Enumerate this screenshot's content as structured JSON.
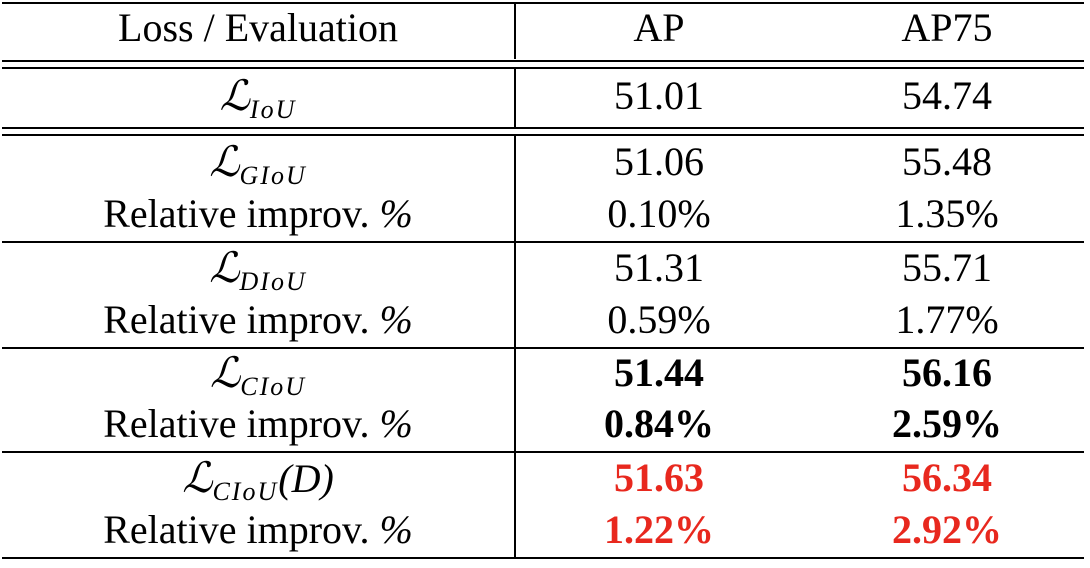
{
  "table": {
    "header": {
      "col1": "Loss / Evaluation",
      "col2": "AP",
      "col3": "AP75"
    },
    "baseline": {
      "loss_symbol": "ℒ",
      "loss_sub": "IoU",
      "ap": "51.01",
      "ap75": "54.74"
    },
    "groups": [
      {
        "loss_symbol": "ℒ",
        "loss_sub": "GIoU",
        "loss_arg": "",
        "ap": "51.06",
        "ap75": "55.48",
        "rel_label": "Relative improv. ",
        "rel_pct": "%",
        "rel_ap": "0.10%",
        "rel_ap75": "1.35%"
      },
      {
        "loss_symbol": "ℒ",
        "loss_sub": "DIoU",
        "loss_arg": "",
        "ap": "51.31",
        "ap75": "55.71",
        "rel_label": "Relative improv. ",
        "rel_pct": "%",
        "rel_ap": "0.59%",
        "rel_ap75": "1.77%"
      },
      {
        "loss_symbol": "ℒ",
        "loss_sub": "CIoU",
        "loss_arg": "",
        "ap": "51.44",
        "ap75": "56.16",
        "rel_label": "Relative improv. ",
        "rel_pct": "%",
        "rel_ap": "0.84%",
        "rel_ap75": "2.59%"
      },
      {
        "loss_symbol": "ℒ",
        "loss_sub": "CIoU",
        "loss_arg": "(D)",
        "ap": "51.63",
        "ap75": "56.34",
        "rel_label": "Relative improv. ",
        "rel_pct": "%",
        "rel_ap": "1.22%",
        "rel_ap75": "2.92%"
      }
    ],
    "highlight_color": "#e8281e"
  }
}
